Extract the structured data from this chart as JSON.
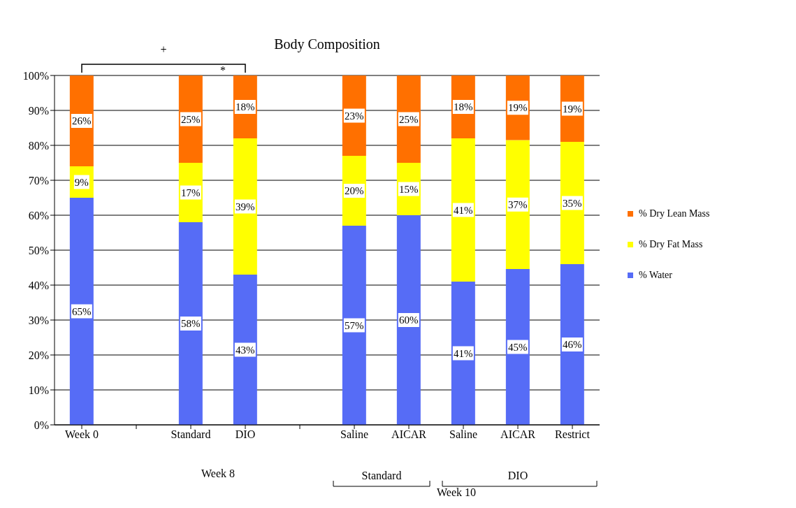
{
  "chart_data": {
    "type": "bar",
    "title": "Body Composition",
    "stacked": true,
    "categories": [
      "Week 0",
      null,
      "Standard",
      "DIO",
      null,
      "Saline",
      "AICAR",
      "Saline",
      "AICAR",
      "Restrict"
    ],
    "series": [
      {
        "name": "% Water",
        "color": "#566cf6",
        "values": [
          65,
          null,
          58,
          43,
          null,
          57,
          60,
          41,
          44.6,
          46
        ],
        "value_labels": [
          "65%",
          null,
          "58%",
          "43%",
          null,
          "57%",
          "60%",
          "41%",
          "45%",
          "46%"
        ]
      },
      {
        "name": "% Dry Fat Mass",
        "color": "#ffff00",
        "values": [
          9,
          null,
          17,
          39,
          null,
          20,
          15,
          41,
          36.9,
          35
        ],
        "value_labels": [
          "9%",
          null,
          "17%",
          "39%",
          null,
          "20%",
          "15%",
          "41%",
          "37%",
          "35%"
        ]
      },
      {
        "name": "% Dry Lean Mass",
        "color": "#ff7000",
        "values": [
          26,
          null,
          25,
          18,
          null,
          23,
          25,
          18,
          18.5,
          19
        ],
        "value_labels": [
          "26%",
          null,
          "25%",
          "18%",
          null,
          "23%",
          "25%",
          "18%",
          "19%",
          "19%"
        ]
      }
    ],
    "ylim": [
      0,
      100
    ],
    "yticks": [
      {
        "value": 0,
        "label": "0%"
      },
      {
        "value": 10,
        "label": "10%"
      },
      {
        "value": 20,
        "label": "20%"
      },
      {
        "value": 30,
        "label": "30%"
      },
      {
        "value": 40,
        "label": "40%"
      },
      {
        "value": 50,
        "label": "50%"
      },
      {
        "value": 60,
        "label": "60%"
      },
      {
        "value": 70,
        "label": "70%"
      },
      {
        "value": 80,
        "label": "80%"
      },
      {
        "value": 90,
        "label": "90%"
      },
      {
        "value": 100,
        "label": "100%"
      }
    ],
    "grid": "y",
    "legend": "right",
    "annotations": [
      "+",
      "*",
      "Week 8",
      "Standard",
      "DIO",
      "Week 10"
    ]
  }
}
